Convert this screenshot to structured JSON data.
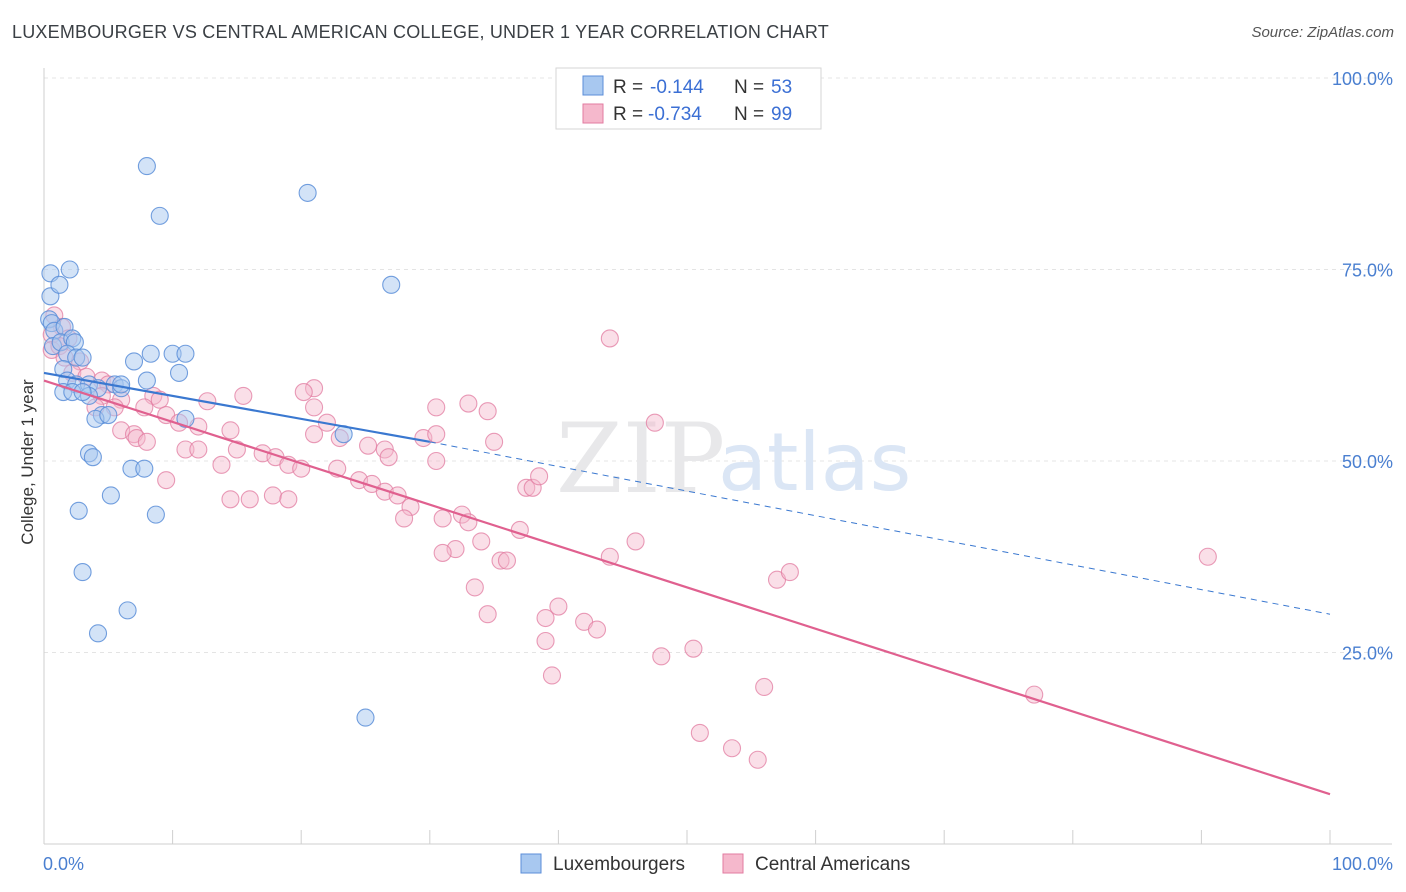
{
  "header": {
    "title": "LUXEMBOURGER VS CENTRAL AMERICAN COLLEGE, UNDER 1 YEAR CORRELATION CHART",
    "source": "Source: ZipAtlas.com"
  },
  "watermark": {
    "zip": "ZIP",
    "atlas": "atlas"
  },
  "legend": {
    "rows": [
      {
        "r_label": "R =",
        "r_value": "-0.144",
        "n_label": "N =",
        "n_value": "53"
      },
      {
        "r_label": "R =",
        "r_value": "-0.734",
        "n_label": "N =",
        "n_value": "99"
      }
    ]
  },
  "bottom_legend": {
    "lux": "Luxembourgers",
    "cam": "Central Americans"
  },
  "chart_data": {
    "type": "scatter",
    "ylabel": "College, Under 1 year",
    "xlim": [
      0,
      100
    ],
    "ylim": [
      0,
      100
    ],
    "x_tick_labels": [
      "0.0%",
      "100.0%"
    ],
    "y_ticks": [
      {
        "value": 100,
        "label": "100.0%"
      },
      {
        "value": 75,
        "label": "75.0%"
      },
      {
        "value": 50,
        "label": "50.0%"
      },
      {
        "value": 25,
        "label": "25.0%"
      }
    ],
    "grid": true,
    "colors": {
      "lux_fill": "#a8c8f0",
      "lux_stroke": "#5b8ed8",
      "lux_line": "#3a78d0",
      "cam_fill": "#f5b8cc",
      "cam_stroke": "#e27ba0",
      "cam_line": "#e0608f"
    },
    "series": [
      {
        "name": "Luxembourgers",
        "trend": {
          "x": [
            0,
            30,
            100
          ],
          "y": [
            61.5,
            52.5,
            30.0
          ]
        },
        "points": [
          [
            0.5,
            74.5
          ],
          [
            0.5,
            71.5
          ],
          [
            1.2,
            73
          ],
          [
            2,
            75
          ],
          [
            0.4,
            68.5
          ],
          [
            0.6,
            68
          ],
          [
            0.8,
            67
          ],
          [
            1.6,
            67.5
          ],
          [
            0.7,
            65
          ],
          [
            1.3,
            65.5
          ],
          [
            2.2,
            66
          ],
          [
            2.4,
            65.5
          ],
          [
            1.8,
            64
          ],
          [
            2.5,
            63.5
          ],
          [
            3,
            63.5
          ],
          [
            1.5,
            62
          ],
          [
            1.8,
            60.5
          ],
          [
            2.5,
            60
          ],
          [
            3.5,
            60
          ],
          [
            4.2,
            59.5
          ],
          [
            5.5,
            60
          ],
          [
            6,
            59.5
          ],
          [
            1.5,
            59
          ],
          [
            2.2,
            59
          ],
          [
            3.5,
            58.5
          ],
          [
            4.5,
            56
          ],
          [
            4,
            55.5
          ],
          [
            5,
            56
          ],
          [
            7,
            63
          ],
          [
            8.3,
            64
          ],
          [
            10,
            64
          ],
          [
            10.5,
            61.5
          ],
          [
            11,
            64
          ],
          [
            8,
            60.5
          ],
          [
            3.5,
            51
          ],
          [
            3.8,
            50.5
          ],
          [
            6.8,
            49
          ],
          [
            7.8,
            49
          ],
          [
            5.2,
            45.5
          ],
          [
            2.7,
            43.5
          ],
          [
            8.7,
            43
          ],
          [
            3,
            35.5
          ],
          [
            6.5,
            30.5
          ],
          [
            4.2,
            27.5
          ],
          [
            8,
            88.5
          ],
          [
            9,
            82
          ],
          [
            20.5,
            85
          ],
          [
            27,
            73
          ],
          [
            11,
            55.5
          ],
          [
            23.3,
            53.5
          ],
          [
            25,
            16.5
          ],
          [
            3,
            59
          ],
          [
            6,
            60
          ]
        ]
      },
      {
        "name": "Central Americans",
        "trend": {
          "x": [
            0,
            100
          ],
          "y": [
            60.5,
            6.5
          ]
        },
        "points": [
          [
            0.8,
            69
          ],
          [
            1.4,
            67.5
          ],
          [
            0.6,
            66.5
          ],
          [
            1.9,
            66
          ],
          [
            0.6,
            64.5
          ],
          [
            1.2,
            65
          ],
          [
            1.6,
            63.5
          ],
          [
            2.8,
            63
          ],
          [
            2.2,
            61.5
          ],
          [
            3.3,
            61
          ],
          [
            4.5,
            60.5
          ],
          [
            5,
            60
          ],
          [
            4.5,
            58.5
          ],
          [
            6,
            58
          ],
          [
            8.5,
            58.5
          ],
          [
            9,
            58
          ],
          [
            12.7,
            57.8
          ],
          [
            15.5,
            58.5
          ],
          [
            4,
            57
          ],
          [
            5.5,
            57
          ],
          [
            7.8,
            57
          ],
          [
            9.5,
            56
          ],
          [
            10.5,
            55
          ],
          [
            12,
            54.5
          ],
          [
            14.5,
            54
          ],
          [
            6,
            54
          ],
          [
            7,
            53.5
          ],
          [
            7.2,
            53
          ],
          [
            8,
            52.5
          ],
          [
            11,
            51.5
          ],
          [
            12,
            51.5
          ],
          [
            15,
            51.5
          ],
          [
            17,
            51
          ],
          [
            18,
            50.5
          ],
          [
            19,
            49.5
          ],
          [
            20,
            49
          ],
          [
            13.8,
            49.5
          ],
          [
            9.5,
            47.5
          ],
          [
            14.5,
            45
          ],
          [
            16,
            45
          ],
          [
            17.8,
            45.5
          ],
          [
            19,
            45
          ],
          [
            21,
            53.5
          ],
          [
            22,
            55
          ],
          [
            23,
            53
          ],
          [
            25.2,
            52
          ],
          [
            26.5,
            51.5
          ],
          [
            26.8,
            50.5
          ],
          [
            21,
            57
          ],
          [
            21,
            59.5
          ],
          [
            20.2,
            59
          ],
          [
            22.8,
            49
          ],
          [
            24.5,
            47.5
          ],
          [
            25.5,
            47
          ],
          [
            26.5,
            46
          ],
          [
            27.5,
            45.5
          ],
          [
            28.5,
            44
          ],
          [
            28,
            42.5
          ],
          [
            29.5,
            53
          ],
          [
            30.5,
            53.5
          ],
          [
            31,
            42.5
          ],
          [
            32.5,
            43
          ],
          [
            33,
            42
          ],
          [
            32,
            38.5
          ],
          [
            31,
            38
          ],
          [
            34,
            39.5
          ],
          [
            33.5,
            33.5
          ],
          [
            34.5,
            30
          ],
          [
            35.5,
            37
          ],
          [
            36,
            37
          ],
          [
            37,
            41
          ],
          [
            37.5,
            46.5
          ],
          [
            38,
            46.5
          ],
          [
            38.5,
            48
          ],
          [
            39,
            29.5
          ],
          [
            40,
            31
          ],
          [
            42,
            29
          ],
          [
            43,
            28
          ],
          [
            44,
            37.5
          ],
          [
            46,
            39.5
          ],
          [
            47.5,
            55
          ],
          [
            48,
            24.5
          ],
          [
            50.5,
            25.5
          ],
          [
            51,
            14.5
          ],
          [
            53.5,
            12.5
          ],
          [
            55.5,
            11
          ],
          [
            56,
            20.5
          ],
          [
            57,
            34.5
          ],
          [
            58,
            35.5
          ],
          [
            44,
            66
          ],
          [
            34.5,
            56.5
          ],
          [
            33,
            57.5
          ],
          [
            30.5,
            57
          ],
          [
            30.5,
            50
          ],
          [
            35,
            52.5
          ],
          [
            77,
            19.5
          ],
          [
            90.5,
            37.5
          ],
          [
            39,
            26.5
          ],
          [
            39.5,
            22
          ]
        ]
      }
    ]
  }
}
